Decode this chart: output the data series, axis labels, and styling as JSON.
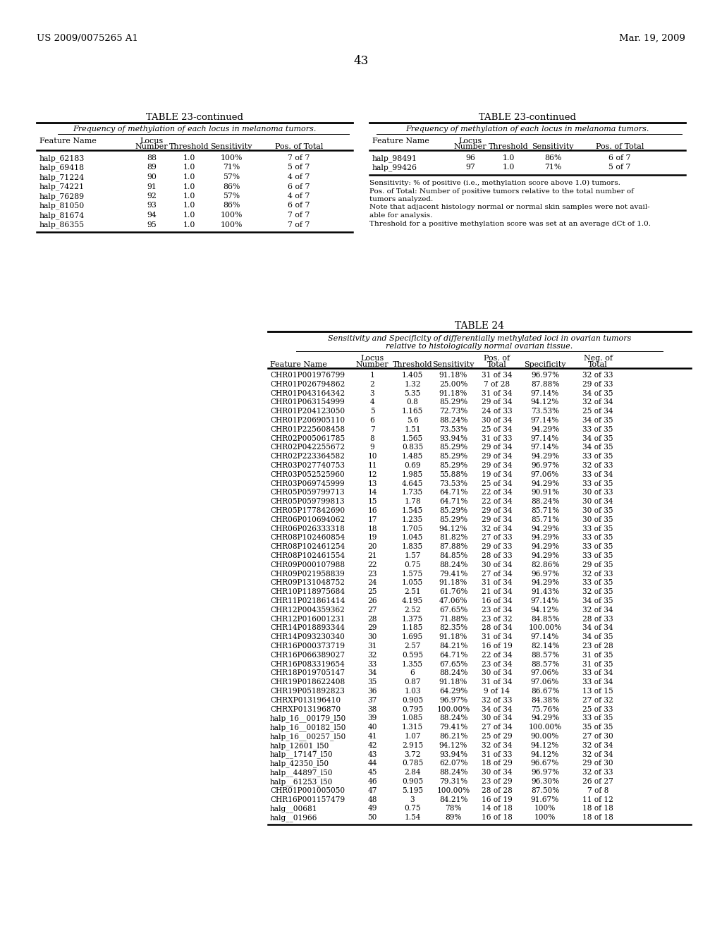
{
  "header_left": "US 2009/0075265 A1",
  "header_right": "Mar. 19, 2009",
  "page_number": "43",
  "bg_color": "#ffffff",
  "table23_left_title": "TABLE 23-continued",
  "table23_left_subtitle": "Frequency of methylation of each locus in melanoma tumors.",
  "table23_left_data": [
    [
      "halp_62183",
      "88",
      "1.0",
      "100%",
      "7 of 7"
    ],
    [
      "halp_69418",
      "89",
      "1.0",
      "71%",
      "5 of 7"
    ],
    [
      "halp_71224",
      "90",
      "1.0",
      "57%",
      "4 of 7"
    ],
    [
      "halp_74221",
      "91",
      "1.0",
      "86%",
      "6 of 7"
    ],
    [
      "halp_76289",
      "92",
      "1.0",
      "57%",
      "4 of 7"
    ],
    [
      "halp_81050",
      "93",
      "1.0",
      "86%",
      "6 of 7"
    ],
    [
      "halp_81674",
      "94",
      "1.0",
      "100%",
      "7 of 7"
    ],
    [
      "halp_86355",
      "95",
      "1.0",
      "100%",
      "7 of 7"
    ]
  ],
  "table23_right_title": "TABLE 23-continued",
  "table23_right_subtitle": "Frequency of methylation of each locus in melanoma tumors.",
  "table23_right_data": [
    [
      "halp_98491",
      "96",
      "1.0",
      "86%",
      "6 of 7"
    ],
    [
      "halp_99426",
      "97",
      "1.0",
      "71%",
      "5 of 7"
    ]
  ],
  "table23_footnote_lines": [
    "Sensitivity: % of positive (i.e., methylation score above 1.0) tumors.",
    "Pos. of Total: Number of positive tumors relative to the total number of",
    "tumors analyzed.",
    "Note that adjacent histology normal or normal skin samples were not avail-",
    "able for analysis.",
    "Threshold for a positive methylation score was set at an average dCt of 1.0."
  ],
  "table24_title": "TABLE 24",
  "table24_subtitle1": "Sensitivity and Specificity of differentially methylated loci in ovarian tumors",
  "table24_subtitle2": "relative to histologically normal ovarian tissue.",
  "table24_data": [
    [
      "CHR01P001976799",
      "1",
      "1.405",
      "91.18%",
      "31 of 34",
      "96.97%",
      "32 of 33"
    ],
    [
      "CHR01P026794862",
      "2",
      "1.32",
      "25.00%",
      "7 of 28",
      "87.88%",
      "29 of 33"
    ],
    [
      "CHR01P043164342",
      "3",
      "5.35",
      "91.18%",
      "31 of 34",
      "97.14%",
      "34 of 35"
    ],
    [
      "CHR01P063154999",
      "4",
      "0.8",
      "85.29%",
      "29 of 34",
      "94.12%",
      "32 of 34"
    ],
    [
      "CHR01P204123050",
      "5",
      "1.165",
      "72.73%",
      "24 of 33",
      "73.53%",
      "25 of 34"
    ],
    [
      "CHR01P206905110",
      "6",
      "5.6",
      "88.24%",
      "30 of 34",
      "97.14%",
      "34 of 35"
    ],
    [
      "CHR01P225608458",
      "7",
      "1.51",
      "73.53%",
      "25 of 34",
      "94.29%",
      "33 of 35"
    ],
    [
      "CHR02P005061785",
      "8",
      "1.565",
      "93.94%",
      "31 of 33",
      "97.14%",
      "34 of 35"
    ],
    [
      "CHR02P042255672",
      "9",
      "0.835",
      "85.29%",
      "29 of 34",
      "97.14%",
      "34 of 35"
    ],
    [
      "CHR02P223364582",
      "10",
      "1.485",
      "85.29%",
      "29 of 34",
      "94.29%",
      "33 of 35"
    ],
    [
      "CHR03P027740753",
      "11",
      "0.69",
      "85.29%",
      "29 of 34",
      "96.97%",
      "32 of 33"
    ],
    [
      "CHR03P052525960",
      "12",
      "1.985",
      "55.88%",
      "19 of 34",
      "97.06%",
      "33 of 34"
    ],
    [
      "CHR03P069745999",
      "13",
      "4.645",
      "73.53%",
      "25 of 34",
      "94.29%",
      "33 of 35"
    ],
    [
      "CHR05P059799713",
      "14",
      "1.735",
      "64.71%",
      "22 of 34",
      "90.91%",
      "30 of 33"
    ],
    [
      "CHR05P059799813",
      "15",
      "1.78",
      "64.71%",
      "22 of 34",
      "88.24%",
      "30 of 34"
    ],
    [
      "CHR05P177842690",
      "16",
      "1.545",
      "85.29%",
      "29 of 34",
      "85.71%",
      "30 of 35"
    ],
    [
      "CHR06P010694062",
      "17",
      "1.235",
      "85.29%",
      "29 of 34",
      "85.71%",
      "30 of 35"
    ],
    [
      "CHR06P026333318",
      "18",
      "1.705",
      "94.12%",
      "32 of 34",
      "94.29%",
      "33 of 35"
    ],
    [
      "CHR08P102460854",
      "19",
      "1.045",
      "81.82%",
      "27 of 33",
      "94.29%",
      "33 of 35"
    ],
    [
      "CHR08P102461254",
      "20",
      "1.835",
      "87.88%",
      "29 of 33",
      "94.29%",
      "33 of 35"
    ],
    [
      "CHR08P102461554",
      "21",
      "1.57",
      "84.85%",
      "28 of 33",
      "94.29%",
      "33 of 35"
    ],
    [
      "CHR09P000107988",
      "22",
      "0.75",
      "88.24%",
      "30 of 34",
      "82.86%",
      "29 of 35"
    ],
    [
      "CHR09P021958839",
      "23",
      "1.575",
      "79.41%",
      "27 of 34",
      "96.97%",
      "32 of 33"
    ],
    [
      "CHR09P131048752",
      "24",
      "1.055",
      "91.18%",
      "31 of 34",
      "94.29%",
      "33 of 35"
    ],
    [
      "CHR10P118975684",
      "25",
      "2.51",
      "61.76%",
      "21 of 34",
      "91.43%",
      "32 of 35"
    ],
    [
      "CHR11P021861414",
      "26",
      "4.195",
      "47.06%",
      "16 of 34",
      "97.14%",
      "34 of 35"
    ],
    [
      "CHR12P004359362",
      "27",
      "2.52",
      "67.65%",
      "23 of 34",
      "94.12%",
      "32 of 34"
    ],
    [
      "CHR12P016001231",
      "28",
      "1.375",
      "71.88%",
      "23 of 32",
      "84.85%",
      "28 of 33"
    ],
    [
      "CHR14P018893344",
      "29",
      "1.185",
      "82.35%",
      "28 of 34",
      "100.00%",
      "34 of 34"
    ],
    [
      "CHR14P093230340",
      "30",
      "1.695",
      "91.18%",
      "31 of 34",
      "97.14%",
      "34 of 35"
    ],
    [
      "CHR16P000373719",
      "31",
      "2.57",
      "84.21%",
      "16 of 19",
      "82.14%",
      "23 of 28"
    ],
    [
      "CHR16P066389027",
      "32",
      "0.595",
      "64.71%",
      "22 of 34",
      "88.57%",
      "31 of 35"
    ],
    [
      "CHR16P083319654",
      "33",
      "1.355",
      "67.65%",
      "23 of 34",
      "88.57%",
      "31 of 35"
    ],
    [
      "CHR18P019705147",
      "34",
      "6",
      "88.24%",
      "30 of 34",
      "97.06%",
      "33 of 34"
    ],
    [
      "CHR19P018622408",
      "35",
      "0.87",
      "91.18%",
      "31 of 34",
      "97.06%",
      "33 of 34"
    ],
    [
      "CHR19P051892823",
      "36",
      "1.03",
      "64.29%",
      "9 of 14",
      "86.67%",
      "13 of 15"
    ],
    [
      "CHRXP013196410",
      "37",
      "0.905",
      "96.97%",
      "32 of 33",
      "84.38%",
      "27 of 32"
    ],
    [
      "CHRXP013196870",
      "38",
      "0.795",
      "100.00%",
      "34 of 34",
      "75.76%",
      "25 of 33"
    ],
    [
      "halp_16__00179_l50",
      "39",
      "1.085",
      "88.24%",
      "30 of 34",
      "94.29%",
      "33 of 35"
    ],
    [
      "halp_16__00182_l50",
      "40",
      "1.315",
      "79.41%",
      "27 of 34",
      "100.00%",
      "35 of 35"
    ],
    [
      "halp_16__00257_l50",
      "41",
      "1.07",
      "86.21%",
      "25 of 29",
      "90.00%",
      "27 of 30"
    ],
    [
      "halp_12601_l50",
      "42",
      "2.915",
      "94.12%",
      "32 of 34",
      "94.12%",
      "32 of 34"
    ],
    [
      "halp__17147_l50",
      "43",
      "3.72",
      "93.94%",
      "31 of 33",
      "94.12%",
      "32 of 34"
    ],
    [
      "halp_42350_l50",
      "44",
      "0.785",
      "62.07%",
      "18 of 29",
      "96.67%",
      "29 of 30"
    ],
    [
      "halp__44897_l50",
      "45",
      "2.84",
      "88.24%",
      "30 of 34",
      "96.97%",
      "32 of 33"
    ],
    [
      "halp__61253_l50",
      "46",
      "0.905",
      "79.31%",
      "23 of 29",
      "96.30%",
      "26 of 27"
    ],
    [
      "CHR01P001005050",
      "47",
      "5.195",
      "100.00%",
      "28 of 28",
      "87.50%",
      "7 of 8"
    ],
    [
      "CHR16P001157479",
      "48",
      "3",
      "84.21%",
      "16 of 19",
      "91.67%",
      "11 of 12"
    ],
    [
      "halg__00681",
      "49",
      "0.75",
      "78%",
      "14 of 18",
      "100%",
      "18 of 18"
    ],
    [
      "halg__01966",
      "50",
      "1.54",
      "89%",
      "16 of 18",
      "100%",
      "18 of 18"
    ]
  ]
}
